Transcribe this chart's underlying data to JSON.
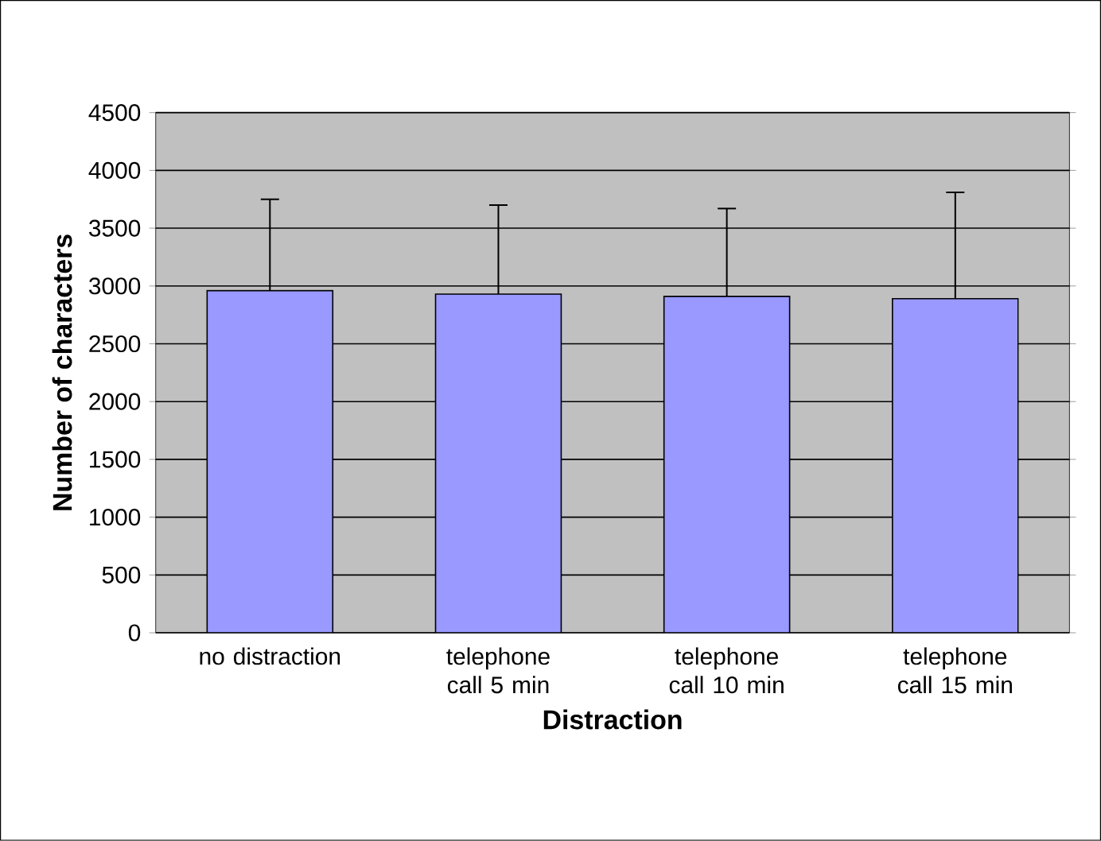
{
  "chart_data": {
    "type": "bar",
    "xlabel": "Distraction",
    "ylabel": "Number of characters",
    "categories": [
      "no distraction",
      "telephone call 5 min",
      "telephone call 10 min",
      "telephone call 15 min"
    ],
    "values": [
      2960,
      2930,
      2910,
      2890
    ],
    "errors": [
      [
        2960,
        3750
      ],
      [
        2930,
        3700
      ],
      [
        2910,
        3670
      ],
      [
        2890,
        3810
      ]
    ],
    "color": "#9999ff",
    "ylim": [
      0,
      4500
    ],
    "yticks": [
      0,
      500,
      1000,
      1500,
      2000,
      2500,
      3000,
      3500,
      4000,
      4500
    ],
    "grid": "y"
  }
}
